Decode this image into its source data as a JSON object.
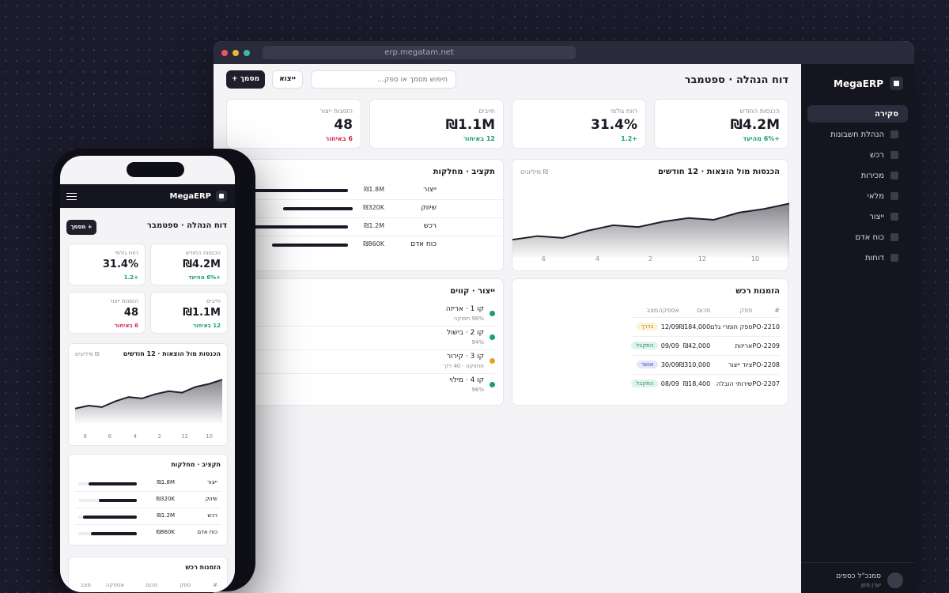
{
  "browser": {
    "url": "erp.megatam.net"
  },
  "sidebar": {
    "brand": "MegaERP",
    "items": [
      {
        "label": "סקירה",
        "active": true
      },
      {
        "label": "הנהלת חשבונות",
        "active": false
      },
      {
        "label": "רכש",
        "active": false
      },
      {
        "label": "מכירות",
        "active": false
      },
      {
        "label": "מלאי",
        "active": false
      },
      {
        "label": "ייצור",
        "active": false
      },
      {
        "label": "כוח אדם",
        "active": false
      },
      {
        "label": "דוחות",
        "active": false
      }
    ],
    "user": {
      "name": "סמנכ\"ל כספים",
      "role": "יערן מזון"
    }
  },
  "header": {
    "title": "דוח הנהלה · ספטמבר",
    "search_placeholder": "חיפוש מסמך או ספק...",
    "export_label": "ייצוא",
    "new_label": "+ מסמך"
  },
  "kpis": [
    {
      "label": "הכנסות החודש",
      "value": "₪4.2M",
      "delta": "+6% מהיעד",
      "trend": "up"
    },
    {
      "label": "רווח גולמי",
      "value": "31.4%",
      "delta": "+1.2",
      "trend": "up"
    },
    {
      "label": "חייבים",
      "value": "₪1.1M",
      "delta": "12 באיחור",
      "trend": "up"
    },
    {
      "label": "הזמנות ייצור",
      "value": "48",
      "delta": "6 באיחור",
      "trend": "down"
    }
  ],
  "revenue_chart": {
    "title": "הכנסות מול הוצאות · 12 חודשים",
    "note": "₪ מיליונים",
    "x_ticks": [
      "10",
      "12",
      "2",
      "4",
      "6",
      "8"
    ]
  },
  "budget": {
    "title": "תקציב · מחלקות",
    "rows": [
      {
        "name": "ייצור",
        "amount": "₪1.8M",
        "pct": 0.8
      },
      {
        "name": "שיווק",
        "amount": "₪320K",
        "pct": 0.46
      },
      {
        "name": "רכש",
        "amount": "₪1.2M",
        "pct": 0.8
      },
      {
        "name": "כוח אדם",
        "amount": "₪860K",
        "pct": 0.68
      }
    ]
  },
  "orders": {
    "title": "הזמנות רכש",
    "columns": [
      "#",
      "ספק",
      "סכום",
      "אספקה",
      "מצב"
    ],
    "rows": [
      {
        "id": "PO-2210",
        "supplier": "ספק חומרי גלם",
        "amount": "₪184,000",
        "delivery": "12/09",
        "status": "בדרך",
        "status_color": "#b8860b",
        "status_bg": "#fdf3d6"
      },
      {
        "id": "PO-2209",
        "supplier": "אריזות",
        "amount": "₪42,000",
        "delivery": "09/09",
        "status": "התקבל",
        "status_color": "#1a8a5c",
        "status_bg": "#dff3ea"
      },
      {
        "id": "PO-2208",
        "supplier": "ציוד ייצור",
        "amount": "₪310,000",
        "delivery": "30/09",
        "status": "אושר",
        "status_color": "#3a4ab8",
        "status_bg": "#e3e6fa"
      },
      {
        "id": "PO-2207",
        "supplier": "שירותי הובלה",
        "amount": "₪18,400",
        "delivery": "08/09",
        "status": "התקבל",
        "status_color": "#1a8a5c",
        "status_bg": "#dff3ea"
      }
    ]
  },
  "production": {
    "title": "ייצור · קווים",
    "lines": [
      {
        "name": "קו 1 · אריזה",
        "sub": "98% תפוקה",
        "color": "#17a070"
      },
      {
        "name": "קו 2 · בישול",
        "sub": "94%",
        "color": "#17a070"
      },
      {
        "name": "קו 3 · קירור",
        "sub": "תחזוקה · 40 דק'",
        "color": "#e8a020"
      },
      {
        "name": "קו 4 · מילוי",
        "sub": "96%",
        "color": "#17a070"
      }
    ]
  },
  "chart_data": {
    "type": "area",
    "title": "הכנסות מול הוצאות · 12 חודשים",
    "ylabel": "₪ מיליונים",
    "x": [
      9,
      10,
      11,
      12,
      1,
      2,
      3,
      4,
      5,
      6,
      7,
      8
    ],
    "x_tick_labels": [
      "10",
      "12",
      "2",
      "4",
      "6",
      "8"
    ],
    "series": [
      {
        "values": [
          3.0,
          3.2,
          3.1,
          3.5,
          3.8,
          3.7,
          4.0,
          4.2,
          4.1,
          4.5,
          4.7,
          5.0
        ]
      }
    ],
    "ylim": [
      0,
      6
    ]
  },
  "mobile": {
    "brand": "MegaERP",
    "title": "דוח הנהלה · ספטמבר",
    "new_label": "+ מסמך",
    "chart_title": "הכנסות מול הוצאות · 12 חודשים",
    "chart_note": "₪ מיליונים",
    "x_ticks": [
      "10",
      "12",
      "2",
      "4",
      "6",
      "8"
    ],
    "budget_title": "תקציב · מחלקות",
    "orders_title": "הזמנות רכש",
    "orders_columns": [
      "#",
      "ספק",
      "סכום",
      "אספקה",
      "מצב"
    ]
  },
  "colors": {
    "sidebar_bg": "#15151f",
    "accent_dark": "#1f1f2c",
    "up": "#17a070",
    "down": "#d5264b"
  }
}
